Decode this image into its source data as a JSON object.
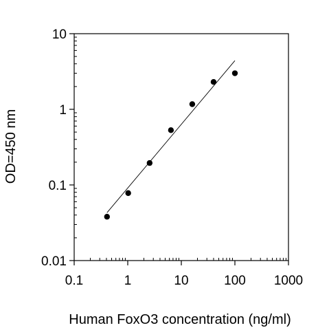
{
  "chart_data": {
    "type": "scatter",
    "title": "",
    "xlabel": "Human FoxO3 concentration (ng/ml)",
    "ylabel": "OD=450 nm",
    "x_scale": "log",
    "y_scale": "log",
    "xlim": [
      0.1,
      1000
    ],
    "ylim": [
      0.01,
      10
    ],
    "x_ticks": [
      0.1,
      1,
      10,
      100,
      1000
    ],
    "x_tick_labels": [
      "0.1",
      "1",
      "10",
      "100",
      "1000"
    ],
    "y_ticks": [
      0.01,
      0.1,
      1,
      10
    ],
    "y_tick_labels": [
      "0.01",
      "0.1",
      "1",
      "10"
    ],
    "grid": false,
    "legend": "none",
    "series": [
      {
        "points": [
          {
            "x": 0.41,
            "y": 0.038
          },
          {
            "x": 1.02,
            "y": 0.078
          },
          {
            "x": 2.56,
            "y": 0.195
          },
          {
            "x": 6.4,
            "y": 0.53
          },
          {
            "x": 16,
            "y": 1.17
          },
          {
            "x": 40,
            "y": 2.3
          },
          {
            "x": 100,
            "y": 3.0
          }
        ]
      }
    ],
    "fit_line": {
      "points": [
        {
          "x": 0.41,
          "y": 0.043
        },
        {
          "x": 100,
          "y": 4.4
        }
      ]
    },
    "colors": {
      "marker": "#000000",
      "line": "#000000",
      "axis": "#000000"
    }
  }
}
